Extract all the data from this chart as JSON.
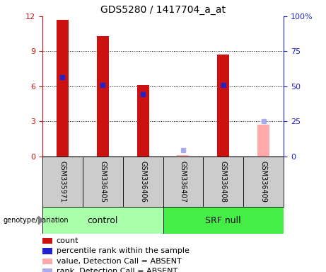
{
  "title": "GDS5280 / 1417704_a_at",
  "samples": [
    "GSM335971",
    "GSM336405",
    "GSM336406",
    "GSM336407",
    "GSM336408",
    "GSM336409"
  ],
  "count_values": [
    11.7,
    10.3,
    6.1,
    null,
    8.7,
    null
  ],
  "percentile_values": [
    6.8,
    6.1,
    5.3,
    null,
    6.1,
    null
  ],
  "absent_value_values": [
    null,
    null,
    null,
    0.12,
    null,
    2.7
  ],
  "absent_rank_values": [
    null,
    null,
    null,
    0.55,
    null,
    3.0
  ],
  "ylim_left": [
    0,
    12
  ],
  "ylim_right": [
    0,
    100
  ],
  "yticks_left": [
    0,
    3,
    6,
    9,
    12
  ],
  "yticks_right": [
    0,
    25,
    50,
    75,
    100
  ],
  "ytick_labels_right": [
    "0",
    "25",
    "50",
    "75",
    "100%"
  ],
  "bar_width": 0.3,
  "count_color": "#cc1111",
  "percentile_color": "#2222cc",
  "absent_value_color": "#ffaaaa",
  "absent_rank_color": "#aaaaee",
  "control_group_color": "#aaffaa",
  "srf_group_color": "#44ee44",
  "title_fontsize": 10,
  "tick_fontsize": 8,
  "sample_fontsize": 7,
  "group_fontsize": 9,
  "legend_fontsize": 8,
  "genotype_label": "genotype/variation",
  "genotype_fontsize": 7,
  "control_label": "control",
  "srf_label": "SRF null",
  "legend_items": [
    {
      "color": "#cc1111",
      "label": "count"
    },
    {
      "color": "#2222cc",
      "label": "percentile rank within the sample"
    },
    {
      "color": "#ffaaaa",
      "label": "value, Detection Call = ABSENT"
    },
    {
      "color": "#aaaaee",
      "label": "rank, Detection Call = ABSENT"
    }
  ]
}
